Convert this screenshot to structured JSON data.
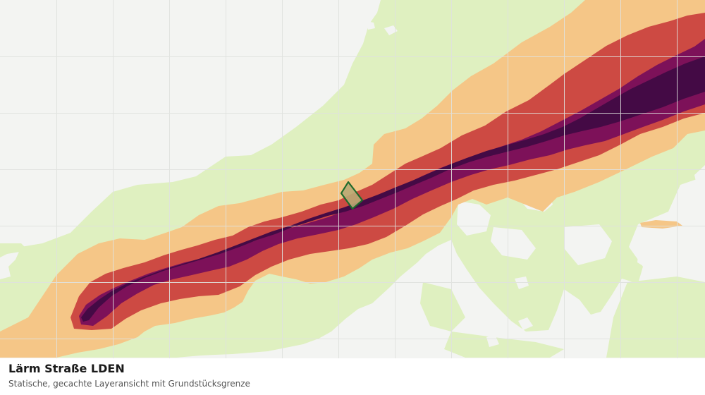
{
  "layer": {
    "title": "Lärm Straße LDEN",
    "subtitle": "Statische, gecachte Layeransicht mit Grundstücksgrenze"
  },
  "map": {
    "grid_visible": true,
    "legend_visible": false,
    "colors": {
      "background": "#f3f4f2",
      "grid": "#e0e2df",
      "band_1_lowest": "#dff0c0",
      "band_2": "#f5c687",
      "band_3": "#cd4a43",
      "band_4": "#7d1159",
      "band_5_highest": "#440a45",
      "parcel_fill": "#b9a874",
      "parcel_outline": "#1e6b2c"
    },
    "parcel_boundary": {
      "shown": true
    }
  }
}
